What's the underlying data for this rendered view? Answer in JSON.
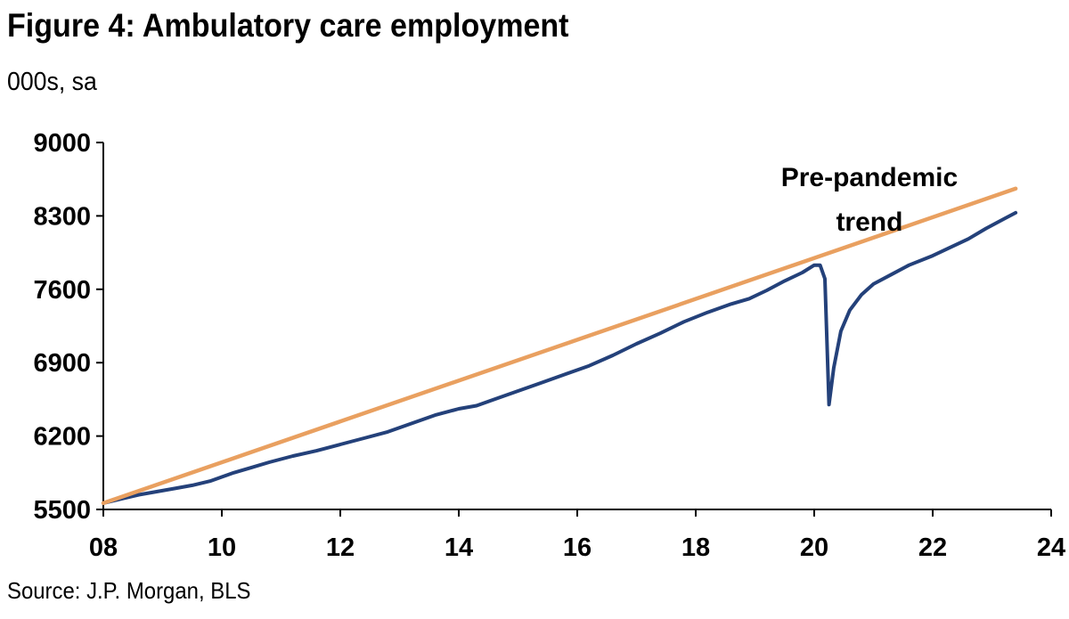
{
  "chart_data": {
    "type": "line",
    "title": "Figure 4: Ambulatory care employment",
    "subtitle": "000s, sa",
    "source": "Source: J.P. Morgan, BLS",
    "xlabel": "",
    "ylabel": "000s, sa",
    "xlim": [
      2008,
      2024
    ],
    "ylim": [
      5500,
      9000
    ],
    "x_ticks": [
      2008,
      2010,
      2012,
      2014,
      2016,
      2018,
      2020,
      2022,
      2024
    ],
    "x_tick_labels": [
      "08",
      "10",
      "12",
      "14",
      "16",
      "18",
      "20",
      "22",
      "24"
    ],
    "y_ticks": [
      5500,
      6200,
      6900,
      7600,
      8300,
      9000
    ],
    "y_tick_labels": [
      "5500",
      "6200",
      "6900",
      "7600",
      "8300",
      "9000"
    ],
    "annotation": {
      "line1": "Pre-pandemic",
      "line2": "trend",
      "x": 2020.3,
      "y": 8500
    },
    "colors": {
      "actual": "#24417a",
      "trend": "#e9a060",
      "axis": "#000000"
    },
    "series": [
      {
        "name": "Ambulatory care employment",
        "color": "#24417a",
        "points": [
          [
            2008.0,
            5560
          ],
          [
            2008.3,
            5600
          ],
          [
            2008.6,
            5640
          ],
          [
            2008.9,
            5670
          ],
          [
            2009.2,
            5700
          ],
          [
            2009.5,
            5730
          ],
          [
            2009.8,
            5770
          ],
          [
            2010.0,
            5810
          ],
          [
            2010.2,
            5850
          ],
          [
            2010.5,
            5900
          ],
          [
            2010.8,
            5950
          ],
          [
            2011.2,
            6010
          ],
          [
            2011.6,
            6060
          ],
          [
            2012.0,
            6120
          ],
          [
            2012.4,
            6180
          ],
          [
            2012.8,
            6240
          ],
          [
            2013.2,
            6320
          ],
          [
            2013.6,
            6400
          ],
          [
            2014.0,
            6460
          ],
          [
            2014.3,
            6490
          ],
          [
            2014.6,
            6550
          ],
          [
            2015.0,
            6630
          ],
          [
            2015.4,
            6710
          ],
          [
            2015.8,
            6790
          ],
          [
            2016.2,
            6870
          ],
          [
            2016.6,
            6970
          ],
          [
            2017.0,
            7080
          ],
          [
            2017.4,
            7180
          ],
          [
            2017.8,
            7290
          ],
          [
            2018.2,
            7380
          ],
          [
            2018.6,
            7460
          ],
          [
            2018.9,
            7510
          ],
          [
            2019.2,
            7590
          ],
          [
            2019.5,
            7680
          ],
          [
            2019.8,
            7760
          ],
          [
            2020.0,
            7830
          ],
          [
            2020.1,
            7830
          ],
          [
            2020.18,
            7700
          ],
          [
            2020.25,
            6500
          ],
          [
            2020.33,
            6850
          ],
          [
            2020.45,
            7200
          ],
          [
            2020.6,
            7400
          ],
          [
            2020.8,
            7550
          ],
          [
            2021.0,
            7650
          ],
          [
            2021.3,
            7740
          ],
          [
            2021.6,
            7830
          ],
          [
            2022.0,
            7920
          ],
          [
            2022.3,
            8000
          ],
          [
            2022.6,
            8080
          ],
          [
            2022.9,
            8180
          ],
          [
            2023.2,
            8270
          ],
          [
            2023.4,
            8330
          ]
        ]
      },
      {
        "name": "Pre-pandemic trend",
        "color": "#e9a060",
        "points": [
          [
            2008.0,
            5560
          ],
          [
            2023.4,
            8560
          ]
        ]
      }
    ]
  }
}
